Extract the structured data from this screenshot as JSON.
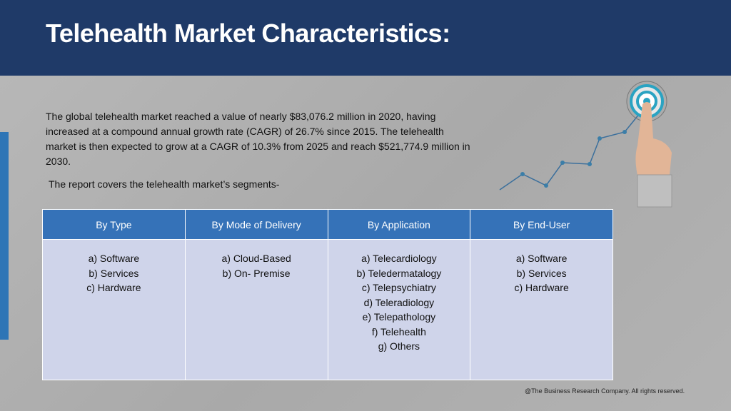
{
  "header": {
    "title": "Telehealth Market Characteristics:"
  },
  "intro": {
    "text": "The global telehealth market reached a value of nearly $83,076.2 million in 2020, having increased at a compound annual growth rate (CAGR) of 26.7% since 2015. The telehealth market is then expected to grow at a CAGR of 10.3% from 2025 and reach $521,774.9 million in 2030.",
    "segments_note": "The report covers the telehealth market’s segments-"
  },
  "table": {
    "columns": [
      {
        "header": "By Type",
        "items": [
          "a) Software",
          "b) Services",
          "c) Hardware"
        ]
      },
      {
        "header": "By Mode of Delivery",
        "items": [
          "a) Cloud-Based",
          "b) On- Premise"
        ]
      },
      {
        "header": "By Application",
        "items": [
          "a) Telecardiology",
          "b) Teledermatalogy",
          "c) Telepsychiatry",
          "d) Teleradiology",
          "e) Telepathology",
          "f) Telehealth",
          "g) Others"
        ]
      },
      {
        "header": "By End-User",
        "items": [
          "a) Software",
          "b) Services",
          "c) Hardware"
        ]
      }
    ]
  },
  "footer": {
    "text": "@The Business Research Company. All rights reserved."
  }
}
